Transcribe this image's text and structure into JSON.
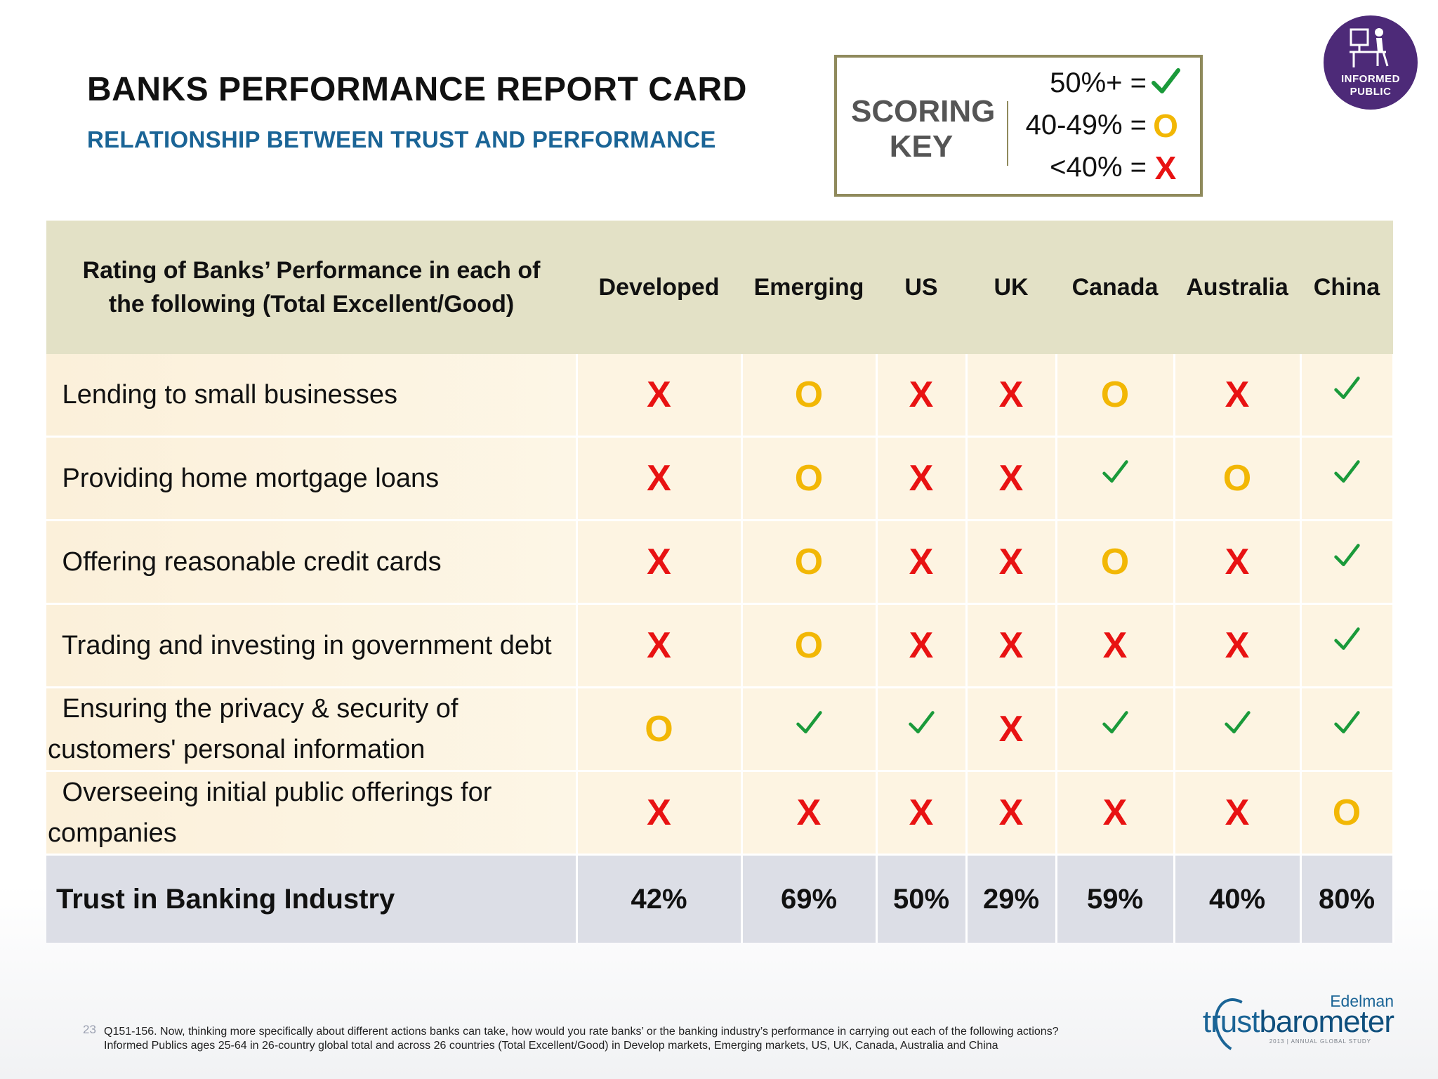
{
  "header": {
    "title": "BANKS PERFORMANCE REPORT CARD",
    "subtitle": "RELATIONSHIP BETWEEN TRUST AND PERFORMANCE"
  },
  "scoring_key": {
    "label_line1": "SCORING",
    "label_line2": "KEY",
    "rows": [
      {
        "range": "50%+ =",
        "symbol": "check"
      },
      {
        "range": "40-49% =",
        "symbol": "O"
      },
      {
        "range": "<40% =",
        "symbol": "X"
      }
    ]
  },
  "logo": {
    "line1": "INFORMED",
    "line2": "PUBLIC"
  },
  "table": {
    "header_line1": "Rating of Banks’ Performance in each of",
    "header_line2": "the following  (Total Excellent/Good)",
    "columns": [
      "Developed",
      "Emerging",
      "US",
      "UK",
      "Canada",
      "Australia",
      "China"
    ],
    "rows": [
      {
        "label_line1": " Lending to small businesses",
        "label_line2": "",
        "marks": [
          "X",
          "O",
          "X",
          "X",
          "O",
          "X",
          "check"
        ]
      },
      {
        "label_line1": " Providing home mortgage loans",
        "label_line2": "",
        "marks": [
          "X",
          "O",
          "X",
          "X",
          "check",
          "O",
          "check"
        ]
      },
      {
        "label_line1": " Offering reasonable credit cards",
        "label_line2": "",
        "marks": [
          "X",
          "O",
          "X",
          "X",
          "O",
          "X",
          "check"
        ]
      },
      {
        "label_line1": " Trading and investing in government debt",
        "label_line2": "",
        "marks": [
          "X",
          "O",
          "X",
          "X",
          "X",
          "X",
          "check"
        ]
      },
      {
        "label_line1": " Ensuring the privacy & security of",
        "label_line2": "customers' personal information",
        "marks": [
          "O",
          "check",
          "check",
          "X",
          "check",
          "check",
          "check"
        ]
      },
      {
        "label_line1": " Overseeing initial public offerings for",
        "label_line2": "companies",
        "marks": [
          "X",
          "X",
          "X",
          "X",
          "X",
          "X",
          "O"
        ]
      }
    ],
    "trust_label": "Trust in Banking Industry",
    "trust_values": [
      "42%",
      "69%",
      "50%",
      "29%",
      "59%",
      "40%",
      "80%"
    ]
  },
  "footer": {
    "page_number": "23",
    "note_line1": "Q151-156. Now, thinking more specifically about different actions banks can take, how would you rate banks’ or the banking industry’s performance in carrying out each of the following actions?",
    "note_line2": "Informed Publics ages 25-64 in 26-country global total and across 26 countries  (Total Excellent/Good) in Develop markets, Emerging markets, US, UK, Canada, Australia and China",
    "brand": "Edelman",
    "product_a": "trust",
    "product_b": "barometer",
    "study": "2013 | ANNUAL GLOBAL STUDY"
  },
  "colors": {
    "x": "#e81212",
    "o": "#f2b705",
    "check": "#1a9a3a",
    "title_blue": "#1a6496",
    "logo_purple": "#4d2a78"
  }
}
